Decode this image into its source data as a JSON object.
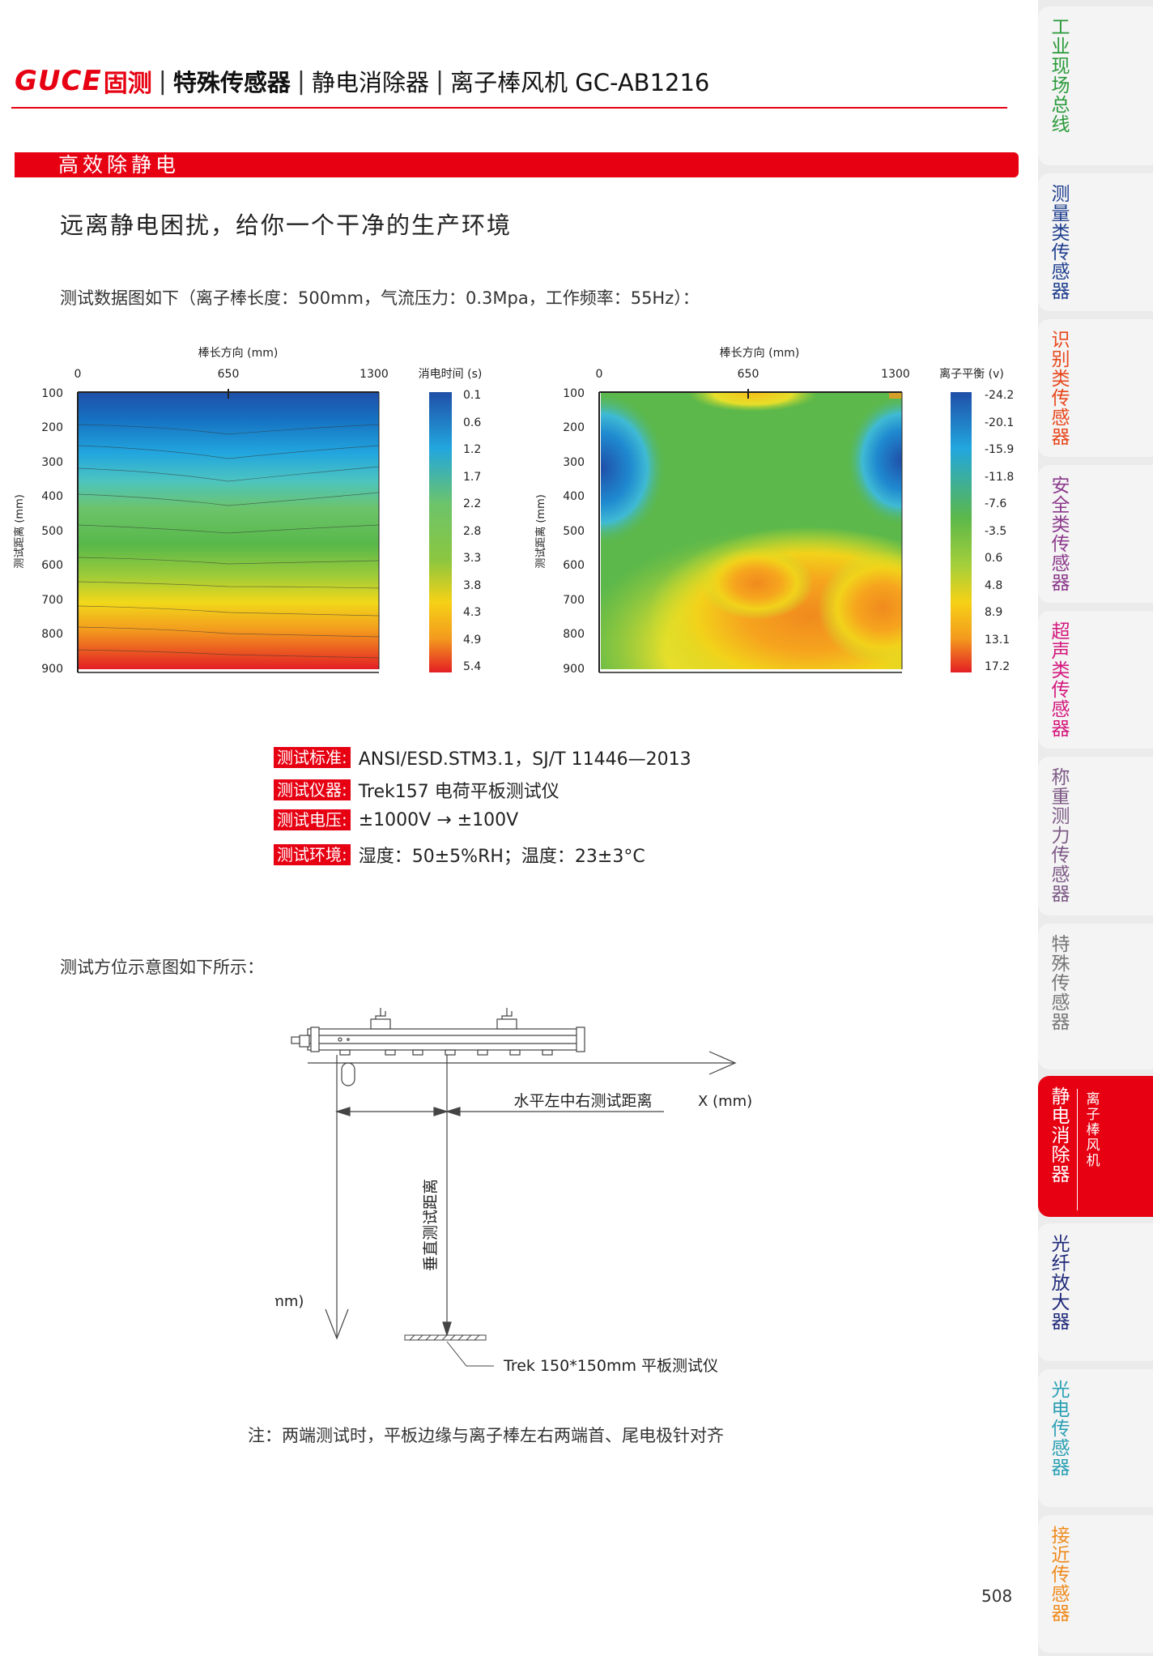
{
  "header": {
    "logo": "GUCE",
    "logo_cn": "固测",
    "category": "特殊传感器",
    "subcategory": "静电消除器",
    "product": "离子棒风机 GC-AB1216",
    "separator": "|"
  },
  "section": {
    "band_title": "高效除静电",
    "subtitle": "远离静电困扰，给你一个干净的生产环境",
    "test_params": "测试数据图如下（离子棒长度：500mm，气流压力：0.3Mpa，工作频率：55Hz）："
  },
  "chart_data": [
    {
      "type": "heatmap",
      "title": "",
      "xlabel": "棒长方向 (mm)",
      "ylabel": "测试距离 (mm)",
      "x_ticks": [
        "0",
        "650",
        "1300"
      ],
      "y_ticks": [
        "100",
        "200",
        "300",
        "400",
        "500",
        "600",
        "700",
        "800",
        "900"
      ],
      "xlim": [
        0,
        1300
      ],
      "ylim": [
        100,
        900
      ],
      "colorbar_label": "消电时间 (s)",
      "colorbar_ticks": [
        "0.1",
        "0.6",
        "1.2",
        "1.7",
        "2.2",
        "2.8",
        "3.3",
        "3.8",
        "4.3",
        "4.9",
        "5.4"
      ],
      "colormap": [
        "#1f4fa8",
        "#1478c8",
        "#22a6de",
        "#4cc4c0",
        "#7ccb74",
        "#5cb84a",
        "#8cc63f",
        "#d6d925",
        "#f6d116",
        "#f39a1e",
        "#ea4a22",
        "#e31e24"
      ]
    },
    {
      "type": "heatmap",
      "title": "",
      "xlabel": "棒长方向 (mm)",
      "ylabel": "测试距离 (mm)",
      "x_ticks": [
        "0",
        "650",
        "1300"
      ],
      "y_ticks": [
        "100",
        "200",
        "300",
        "400",
        "500",
        "600",
        "700",
        "800",
        "900"
      ],
      "xlim": [
        0,
        1300
      ],
      "ylim": [
        100,
        900
      ],
      "colorbar_label": "离子平衡 (v)",
      "colorbar_ticks": [
        "-24.2",
        "-20.1",
        "-15.9",
        "-11.8",
        "-7.6",
        "-3.5",
        "0.6",
        "4.8",
        "8.9",
        "13.1",
        "17.2"
      ],
      "colormap": [
        "#1f4fa8",
        "#1478c8",
        "#22a6de",
        "#4cc4c0",
        "#5cb84a",
        "#7cc242",
        "#a6cf3a",
        "#e6df2a",
        "#f6c21a",
        "#f39a1e",
        "#ea4a22",
        "#e31e24"
      ]
    }
  ],
  "specs": [
    {
      "label": "测试标准:",
      "value": "ANSI/ESD.STM3.1，SJ/T 11446—2013"
    },
    {
      "label": "测试仪器:",
      "value": "Trek157 电荷平板测试仪"
    },
    {
      "label": "测试电压:",
      "value": "±1000V → ±100V"
    },
    {
      "label": "测试环境:",
      "value": "湿度：50±5%RH；温度：23±3°C"
    }
  ],
  "diagram": {
    "title": "测试方位示意图如下所示：",
    "horizontal_label": "水平左中右测试距离",
    "x_axis": "X (mm)",
    "vertical_label": "垂直测试距离",
    "z_axis": "Z(mm)",
    "plate_label": "Trek 150*150mm 平板测试仪"
  },
  "note": "注：两端测试时，平板边缘与离子棒左右两端首、尾电极针对齐",
  "page_number": "508",
  "tabs": [
    {
      "label": "工业现场总线",
      "color": "#2a9a3a"
    },
    {
      "label": "测量类传感器",
      "color": "#1f3f8f"
    },
    {
      "label": "识别类传感器",
      "color": "#e8471c"
    },
    {
      "label": "安全类传感器",
      "color": "#8c3a8c"
    },
    {
      "label": "超声类传感器",
      "color": "#d4187d"
    },
    {
      "label": "称重测力传感器",
      "color": "#7d5a86"
    },
    {
      "label": "特殊传感器",
      "color": "#777777"
    },
    {
      "label": "静电消除器",
      "color": "#ffffff",
      "sub": "离子棒风机"
    },
    {
      "label": "光纤放大器",
      "color": "#1f2a7a"
    },
    {
      "label": "光电传感器",
      "color": "#2aa0b4"
    },
    {
      "label": "接近传感器",
      "color": "#ef8a1c"
    }
  ]
}
